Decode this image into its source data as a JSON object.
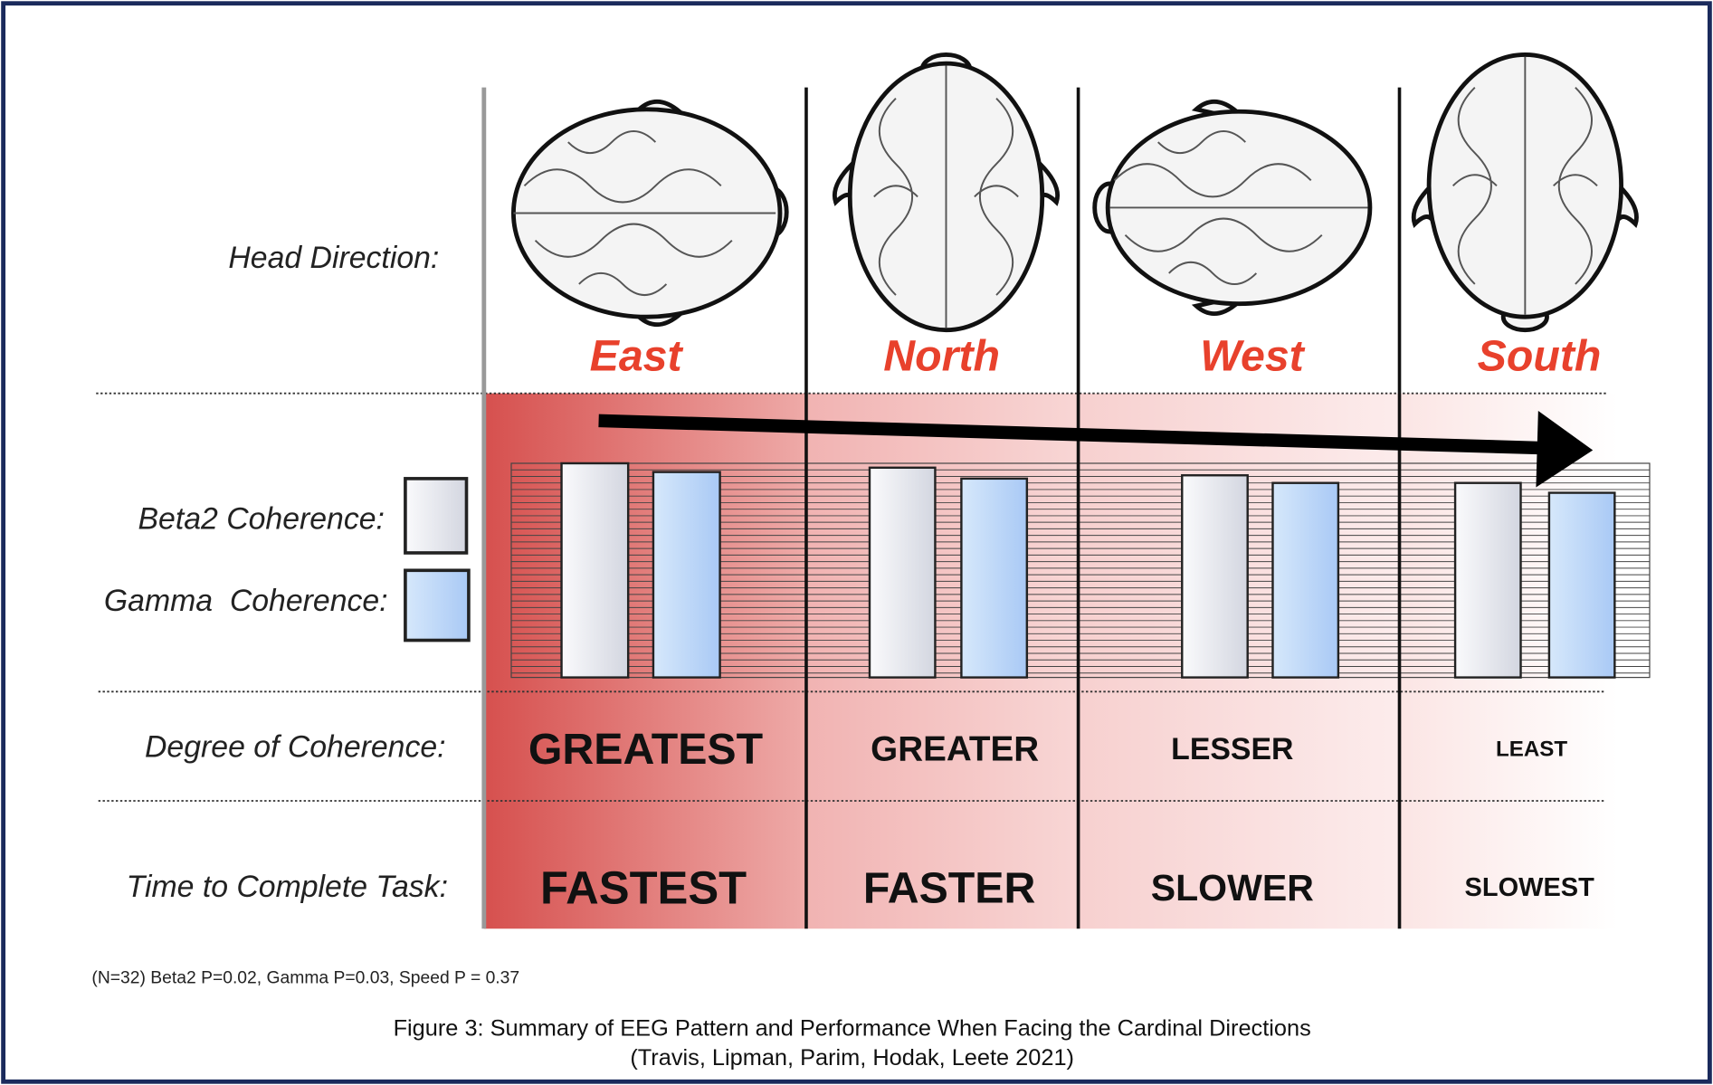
{
  "row_labels": {
    "head_direction": "Head Direction:",
    "beta2": "Beta2 Coherence:",
    "gamma": "Gamma  Coherence:",
    "degree": "Degree of Coherence:",
    "time": "Time to Complete Task:"
  },
  "columns": [
    {
      "direction": "East",
      "degree": "GREATEST",
      "time": "FASTEST"
    },
    {
      "direction": "North",
      "degree": "GREATER",
      "time": "FASTER"
    },
    {
      "direction": "West",
      "degree": "LESSER",
      "time": "SLOWER"
    },
    {
      "direction": "South",
      "degree": "LEAST",
      "time": "SLOWEST"
    }
  ],
  "footnote": "(N=32) Beta2 P=0.02, Gamma P=0.03, Speed P = 0.37",
  "caption": [
    "Figure 3: Summary of EEG Pattern and Performance When Facing the Cardinal Directions",
    "(Travis, Lipman, Parim, Hodak, Leete 2021)"
  ]
}
